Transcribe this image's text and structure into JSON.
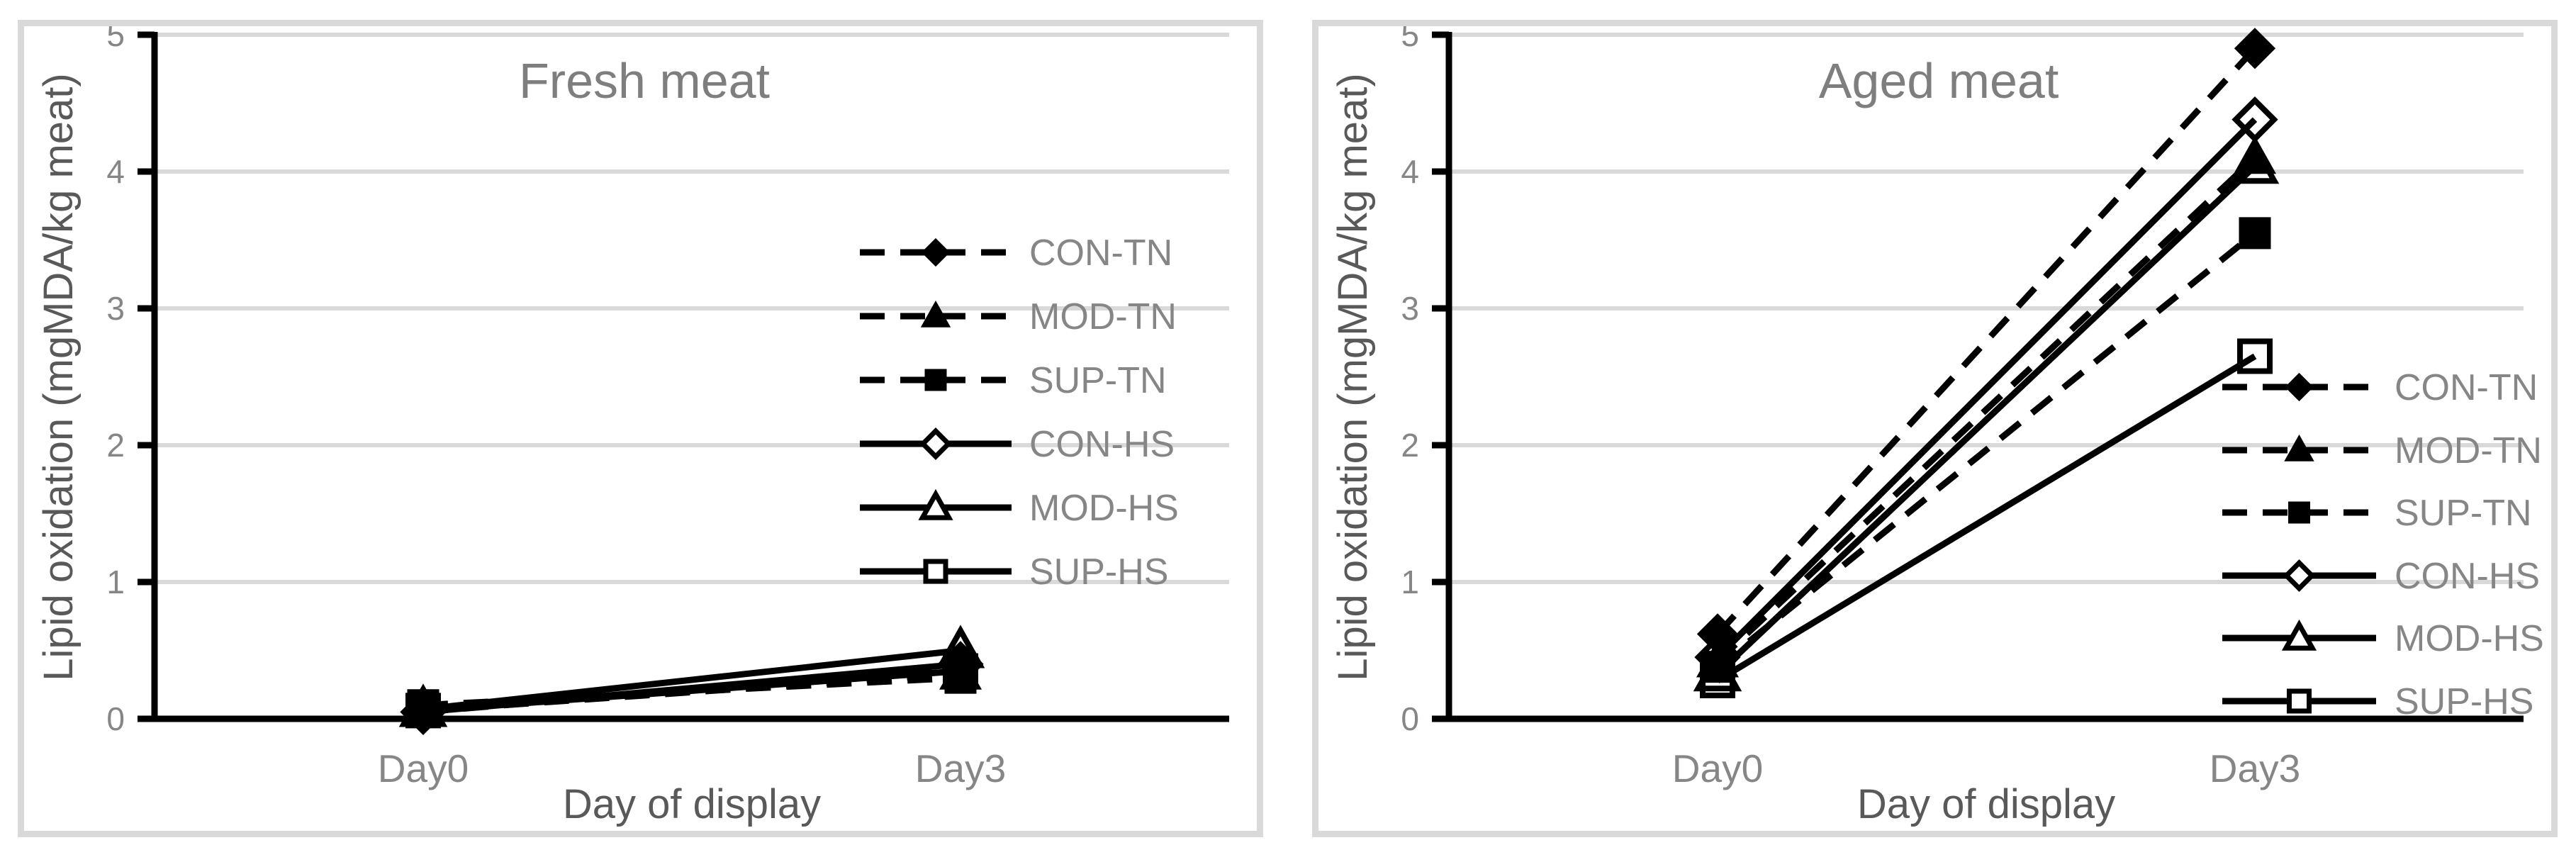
{
  "figure": {
    "background": "#ffffff",
    "border_color": "#d9d9d9"
  },
  "colors": {
    "series_line": "#000000",
    "axis_line": "#000000",
    "gridline": "#d9d9d9",
    "tick_label": "#868686",
    "category_label": "#868686",
    "legend_label": "#868686",
    "axis_title": "#595959",
    "chart_title": "#7e7e7e"
  },
  "chart_data": [
    {
      "type": "line",
      "title": "Fresh meat",
      "xlabel": "Day of display",
      "ylabel": "Lipid oxidation (mgMDA/kg meat)",
      "categories": [
        "Day0",
        "Day3"
      ],
      "yticks": [
        0,
        1,
        2,
        3,
        4,
        5
      ],
      "ylim": [
        0,
        5
      ],
      "grid": true,
      "legend_position": "inside-right-middle",
      "series": [
        {
          "name": "CON-TN",
          "line_style": "dashed",
          "marker": "diamond",
          "marker_fill": "filled",
          "values": [
            0.05,
            0.38
          ]
        },
        {
          "name": "MOD-TN",
          "line_style": "dashed",
          "marker": "triangle",
          "marker_fill": "filled",
          "values": [
            0.06,
            0.33
          ]
        },
        {
          "name": "SUP-TN",
          "line_style": "dashed",
          "marker": "square",
          "marker_fill": "filled",
          "values": [
            0.1,
            0.3
          ]
        },
        {
          "name": "CON-HS",
          "line_style": "solid",
          "marker": "diamond",
          "marker_fill": "open",
          "values": [
            0.05,
            0.4
          ]
        },
        {
          "name": "MOD-HS",
          "line_style": "solid",
          "marker": "triangle",
          "marker_fill": "open",
          "values": [
            0.07,
            0.5
          ]
        },
        {
          "name": "SUP-HS",
          "line_style": "solid",
          "marker": "square",
          "marker_fill": "open",
          "values": [
            0.06,
            0.35
          ]
        }
      ]
    },
    {
      "type": "line",
      "title": "Aged meat",
      "xlabel": "Day of display",
      "ylabel": "Lipid oxidation (mgMDA/kg meat)",
      "categories": [
        "Day0",
        "Day3"
      ],
      "yticks": [
        0,
        1,
        2,
        3,
        4,
        5
      ],
      "ylim": [
        0,
        5
      ],
      "grid": true,
      "legend_position": "inside-right-lower",
      "series": [
        {
          "name": "CON-TN",
          "line_style": "dashed",
          "marker": "diamond",
          "marker_fill": "filled",
          "values": [
            0.62,
            4.9
          ]
        },
        {
          "name": "MOD-TN",
          "line_style": "dashed",
          "marker": "triangle",
          "marker_fill": "filled",
          "values": [
            0.42,
            4.1
          ]
        },
        {
          "name": "SUP-TN",
          "line_style": "dashed",
          "marker": "square",
          "marker_fill": "filled",
          "values": [
            0.38,
            3.55
          ]
        },
        {
          "name": "CON-HS",
          "line_style": "solid",
          "marker": "diamond",
          "marker_fill": "open",
          "values": [
            0.45,
            4.38
          ]
        },
        {
          "name": "MOD-HS",
          "line_style": "solid",
          "marker": "triangle",
          "marker_fill": "open",
          "values": [
            0.33,
            4.04
          ]
        },
        {
          "name": "SUP-HS",
          "line_style": "solid",
          "marker": "square",
          "marker_fill": "open",
          "values": [
            0.28,
            2.65
          ]
        }
      ]
    }
  ]
}
